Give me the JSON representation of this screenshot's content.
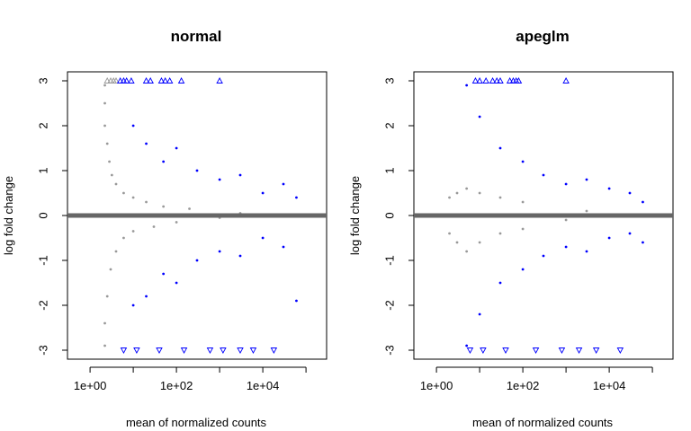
{
  "chart_data": [
    {
      "type": "scatter",
      "title": "normal",
      "xlabel": "mean of normalized counts",
      "ylabel": "log fold change",
      "x_scale": "log",
      "xlim": [
        0.3,
        300000
      ],
      "ylim": [
        -3.2,
        3.2
      ],
      "x_ticks": [
        {
          "value": 1,
          "label": "1e+00"
        },
        {
          "value": 10,
          "label": ""
        },
        {
          "value": 100,
          "label": "1e+02"
        },
        {
          "value": 1000,
          "label": ""
        },
        {
          "value": 10000,
          "label": "1e+04"
        },
        {
          "value": 100000,
          "label": ""
        }
      ],
      "y_ticks": [
        {
          "value": -3,
          "label": "-3"
        },
        {
          "value": -2,
          "label": "-2"
        },
        {
          "value": -1,
          "label": "-1"
        },
        {
          "value": 0,
          "label": "0"
        },
        {
          "value": 1,
          "label": "1"
        },
        {
          "value": 2,
          "label": "2"
        },
        {
          "value": 3,
          "label": "3"
        }
      ],
      "reference_line": {
        "y": 0,
        "color": "#666666"
      },
      "colors": {
        "non_significant": "#999999",
        "significant": "#0000ff"
      },
      "series": [
        {
          "label": "points",
          "points": [
            [
              2.5,
              3,
              "ns",
              "tri-up"
            ],
            [
              3,
              3,
              "ns",
              "tri-up"
            ],
            [
              3.5,
              3,
              "ns",
              "tri-up"
            ],
            [
              4,
              3,
              "ns",
              "tri-up"
            ],
            [
              5,
              3,
              "sig",
              "tri-up"
            ],
            [
              6,
              3,
              "sig",
              "tri-up"
            ],
            [
              7,
              3,
              "sig",
              "tri-up"
            ],
            [
              9,
              3,
              "sig",
              "tri-up"
            ],
            [
              20,
              3,
              "sig",
              "tri-up"
            ],
            [
              25,
              3,
              "sig",
              "tri-up"
            ],
            [
              45,
              3,
              "sig",
              "tri-up"
            ],
            [
              55,
              3,
              "sig",
              "tri-up"
            ],
            [
              70,
              3,
              "sig",
              "tri-up"
            ],
            [
              130,
              3,
              "sig",
              "tri-up"
            ],
            [
              1000,
              3,
              "sig",
              "tri-up"
            ],
            [
              6,
              -3,
              "sig",
              "tri-down"
            ],
            [
              12,
              -3,
              "sig",
              "tri-down"
            ],
            [
              40,
              -3,
              "sig",
              "tri-down"
            ],
            [
              150,
              -3,
              "sig",
              "tri-down"
            ],
            [
              600,
              -3,
              "sig",
              "tri-down"
            ],
            [
              1200,
              -3,
              "sig",
              "tri-down"
            ],
            [
              3000,
              -3,
              "sig",
              "tri-down"
            ],
            [
              6000,
              -3,
              "sig",
              "tri-down"
            ],
            [
              18000,
              -3,
              "sig",
              "tri-down"
            ],
            [
              2.2,
              2.9,
              "ns"
            ],
            [
              2.2,
              2.5,
              "ns"
            ],
            [
              2.2,
              2.0,
              "ns"
            ],
            [
              2.5,
              1.6,
              "ns"
            ],
            [
              2.8,
              1.2,
              "ns"
            ],
            [
              3.2,
              0.9,
              "ns"
            ],
            [
              4,
              0.7,
              "ns"
            ],
            [
              6,
              0.5,
              "ns"
            ],
            [
              10,
              0.4,
              "ns"
            ],
            [
              20,
              0.3,
              "ns"
            ],
            [
              50,
              0.2,
              "ns"
            ],
            [
              200,
              0.15,
              "ns"
            ],
            [
              2.2,
              -2.9,
              "ns"
            ],
            [
              2.2,
              -2.4,
              "ns"
            ],
            [
              2.5,
              -1.8,
              "ns"
            ],
            [
              3,
              -1.2,
              "ns"
            ],
            [
              4,
              -0.8,
              "ns"
            ],
            [
              6,
              -0.5,
              "ns"
            ],
            [
              10,
              -0.35,
              "ns"
            ],
            [
              30,
              -0.25,
              "ns"
            ],
            [
              100,
              -0.15,
              "ns"
            ],
            [
              1000,
              -0.05,
              "ns"
            ],
            [
              3000,
              0.05,
              "ns"
            ],
            [
              10,
              2.0,
              "sig"
            ],
            [
              20,
              1.6,
              "sig"
            ],
            [
              50,
              1.2,
              "sig"
            ],
            [
              100,
              1.5,
              "sig"
            ],
            [
              300,
              1.0,
              "sig"
            ],
            [
              1000,
              0.8,
              "sig"
            ],
            [
              3000,
              0.9,
              "sig"
            ],
            [
              10000,
              0.5,
              "sig"
            ],
            [
              30000,
              0.7,
              "sig"
            ],
            [
              60000,
              0.4,
              "sig"
            ],
            [
              10,
              -2.0,
              "sig"
            ],
            [
              20,
              -1.8,
              "sig"
            ],
            [
              50,
              -1.3,
              "sig"
            ],
            [
              100,
              -1.5,
              "sig"
            ],
            [
              300,
              -1.0,
              "sig"
            ],
            [
              1000,
              -0.8,
              "sig"
            ],
            [
              3000,
              -0.9,
              "sig"
            ],
            [
              10000,
              -0.5,
              "sig"
            ],
            [
              30000,
              -0.7,
              "sig"
            ],
            [
              60000,
              -1.9,
              "sig"
            ]
          ]
        }
      ]
    },
    {
      "type": "scatter",
      "title": "apeglm",
      "xlabel": "mean of normalized counts",
      "ylabel": "log fold change",
      "x_scale": "log",
      "xlim": [
        0.3,
        300000
      ],
      "ylim": [
        -3.2,
        3.2
      ],
      "x_ticks": [
        {
          "value": 1,
          "label": "1e+00"
        },
        {
          "value": 10,
          "label": ""
        },
        {
          "value": 100,
          "label": "1e+02"
        },
        {
          "value": 1000,
          "label": ""
        },
        {
          "value": 10000,
          "label": "1e+04"
        },
        {
          "value": 100000,
          "label": ""
        }
      ],
      "y_ticks": [
        {
          "value": -3,
          "label": "-3"
        },
        {
          "value": -2,
          "label": "-2"
        },
        {
          "value": -1,
          "label": "-1"
        },
        {
          "value": 0,
          "label": "0"
        },
        {
          "value": 1,
          "label": "1"
        },
        {
          "value": 2,
          "label": "2"
        },
        {
          "value": 3,
          "label": "3"
        }
      ],
      "reference_line": {
        "y": 0,
        "color": "#666666"
      },
      "colors": {
        "non_significant": "#999999",
        "significant": "#0000ff"
      },
      "series": [
        {
          "label": "points",
          "points": [
            [
              8,
              3,
              "sig",
              "tri-up"
            ],
            [
              10,
              3,
              "sig",
              "tri-up"
            ],
            [
              14,
              3,
              "sig",
              "tri-up"
            ],
            [
              20,
              3,
              "sig",
              "tri-up"
            ],
            [
              25,
              3,
              "sig",
              "tri-up"
            ],
            [
              30,
              3,
              "sig",
              "tri-up"
            ],
            [
              50,
              3,
              "sig",
              "tri-up"
            ],
            [
              60,
              3,
              "sig",
              "tri-up"
            ],
            [
              70,
              3,
              "sig",
              "tri-up"
            ],
            [
              80,
              3,
              "sig",
              "tri-up"
            ],
            [
              1000,
              3,
              "sig",
              "tri-up"
            ],
            [
              6,
              -3,
              "sig",
              "tri-down"
            ],
            [
              12,
              -3,
              "sig",
              "tri-down"
            ],
            [
              40,
              -3,
              "sig",
              "tri-down"
            ],
            [
              200,
              -3,
              "sig",
              "tri-down"
            ],
            [
              800,
              -3,
              "sig",
              "tri-down"
            ],
            [
              2000,
              -3,
              "sig",
              "tri-down"
            ],
            [
              5000,
              -3,
              "sig",
              "tri-down"
            ],
            [
              18000,
              -3,
              "sig",
              "tri-down"
            ],
            [
              2,
              0.4,
              "ns"
            ],
            [
              3,
              0.5,
              "ns"
            ],
            [
              5,
              0.6,
              "ns"
            ],
            [
              10,
              0.5,
              "ns"
            ],
            [
              30,
              0.4,
              "ns"
            ],
            [
              100,
              0.3,
              "ns"
            ],
            [
              2,
              -0.4,
              "ns"
            ],
            [
              3,
              -0.6,
              "ns"
            ],
            [
              5,
              -0.8,
              "ns"
            ],
            [
              10,
              -0.6,
              "ns"
            ],
            [
              30,
              -0.4,
              "ns"
            ],
            [
              100,
              -0.3,
              "ns"
            ],
            [
              1000,
              -0.1,
              "ns"
            ],
            [
              3000,
              0.1,
              "ns"
            ],
            [
              5,
              2.9,
              "sig"
            ],
            [
              10,
              2.2,
              "sig"
            ],
            [
              30,
              1.5,
              "sig"
            ],
            [
              100,
              1.2,
              "sig"
            ],
            [
              300,
              0.9,
              "sig"
            ],
            [
              1000,
              0.7,
              "sig"
            ],
            [
              3000,
              0.8,
              "sig"
            ],
            [
              10000,
              0.6,
              "sig"
            ],
            [
              30000,
              0.5,
              "sig"
            ],
            [
              60000,
              0.3,
              "sig"
            ],
            [
              5,
              -2.9,
              "sig"
            ],
            [
              10,
              -2.2,
              "sig"
            ],
            [
              30,
              -1.5,
              "sig"
            ],
            [
              100,
              -1.2,
              "sig"
            ],
            [
              300,
              -0.9,
              "sig"
            ],
            [
              1000,
              -0.7,
              "sig"
            ],
            [
              3000,
              -0.8,
              "sig"
            ],
            [
              10000,
              -0.5,
              "sig"
            ],
            [
              30000,
              -0.4,
              "sig"
            ],
            [
              60000,
              -0.6,
              "sig"
            ]
          ]
        }
      ]
    }
  ]
}
